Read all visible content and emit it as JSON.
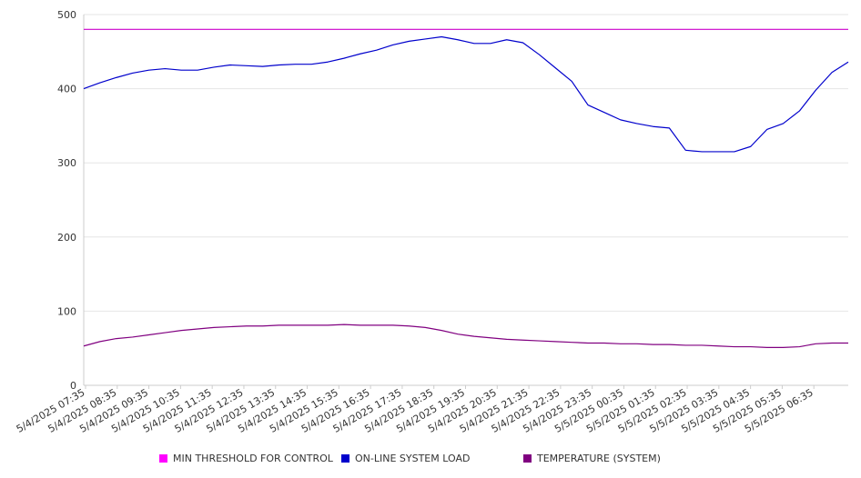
{
  "chart_data": {
    "type": "line",
    "title": "",
    "xlabel": "",
    "ylabel": "",
    "ylim": [
      0,
      500
    ],
    "y_ticks": [
      0,
      100,
      200,
      300,
      400,
      500
    ],
    "grid": true,
    "legend_position": "bottom",
    "x_tick_labels": [
      "5/4/2025 07:35",
      "5/4/2025 08:35",
      "5/4/2025 09:35",
      "5/4/2025 10:35",
      "5/4/2025 11:35",
      "5/4/2025 12:35",
      "5/4/2025 13:35",
      "5/4/2025 14:35",
      "5/4/2025 15:35",
      "5/4/2025 16:35",
      "5/4/2025 17:35",
      "5/4/2025 18:35",
      "5/4/2025 19:35",
      "5/4/2025 20:35",
      "5/4/2025 21:35",
      "5/4/2025 22:35",
      "5/4/2025 23:35",
      "5/5/2025 00:35",
      "5/5/2025 01:35",
      "5/5/2025 02:35",
      "5/5/2025 03:35",
      "5/5/2025 04:35",
      "5/5/2025 05:35",
      "5/5/2025 06:35"
    ],
    "x": [
      "5/4/2025 07:35",
      "5/4/2025 08:05",
      "5/4/2025 08:35",
      "5/4/2025 09:05",
      "5/4/2025 09:35",
      "5/4/2025 10:05",
      "5/4/2025 10:35",
      "5/4/2025 11:05",
      "5/4/2025 11:35",
      "5/4/2025 12:05",
      "5/4/2025 12:35",
      "5/4/2025 13:05",
      "5/4/2025 13:35",
      "5/4/2025 14:05",
      "5/4/2025 14:35",
      "5/4/2025 15:05",
      "5/4/2025 15:35",
      "5/4/2025 16:05",
      "5/4/2025 16:35",
      "5/4/2025 17:05",
      "5/4/2025 17:35",
      "5/4/2025 18:05",
      "5/4/2025 18:35",
      "5/4/2025 19:05",
      "5/4/2025 19:35",
      "5/4/2025 20:05",
      "5/4/2025 20:35",
      "5/4/2025 21:05",
      "5/4/2025 21:35",
      "5/4/2025 22:05",
      "5/4/2025 22:35",
      "5/4/2025 23:05",
      "5/4/2025 23:35",
      "5/5/2025 00:05",
      "5/5/2025 00:35",
      "5/5/2025 01:05",
      "5/5/2025 01:35",
      "5/5/2025 02:05",
      "5/5/2025 02:35",
      "5/5/2025 03:05",
      "5/5/2025 03:35",
      "5/5/2025 04:05",
      "5/5/2025 04:35",
      "5/5/2025 05:05",
      "5/5/2025 05:35",
      "5/5/2025 06:05",
      "5/5/2025 06:35",
      "5/5/2025 07:05"
    ],
    "series": [
      {
        "name": "MIN THRESHOLD FOR CONTROL",
        "color": "#cc00cc",
        "values": [
          480,
          480,
          480,
          480,
          480,
          480,
          480,
          480,
          480,
          480,
          480,
          480,
          480,
          480,
          480,
          480,
          480,
          480,
          480,
          480,
          480,
          480,
          480,
          480,
          480,
          480,
          480,
          480,
          480,
          480,
          480,
          480,
          480,
          480,
          480,
          480,
          480,
          480,
          480,
          480,
          480,
          480,
          480,
          480,
          480,
          480,
          480,
          480
        ]
      },
      {
        "name": "ON-LINE SYSTEM LOAD",
        "color": "#0000cc",
        "values": [
          400,
          408,
          415,
          421,
          425,
          427,
          425,
          425,
          429,
          432,
          431,
          430,
          432,
          433,
          433,
          436,
          441,
          447,
          452,
          459,
          464,
          467,
          470,
          466,
          461,
          461,
          466,
          462,
          446,
          428,
          410,
          378,
          368,
          358,
          353,
          349,
          347,
          317,
          315,
          315,
          315,
          322,
          345,
          353,
          370,
          398,
          422,
          436
        ]
      },
      {
        "name": "TEMPERATURE (SYSTEM)",
        "color": "#800080",
        "values": [
          53,
          59,
          63,
          65,
          68,
          71,
          74,
          76,
          78,
          79,
          80,
          80,
          81,
          81,
          81,
          81,
          82,
          81,
          81,
          81,
          80,
          78,
          74,
          69,
          66,
          64,
          62,
          61,
          60,
          59,
          58,
          57,
          57,
          56,
          56,
          55,
          55,
          54,
          54,
          53,
          52,
          52,
          51,
          51,
          52,
          56,
          57,
          57
        ]
      }
    ]
  }
}
